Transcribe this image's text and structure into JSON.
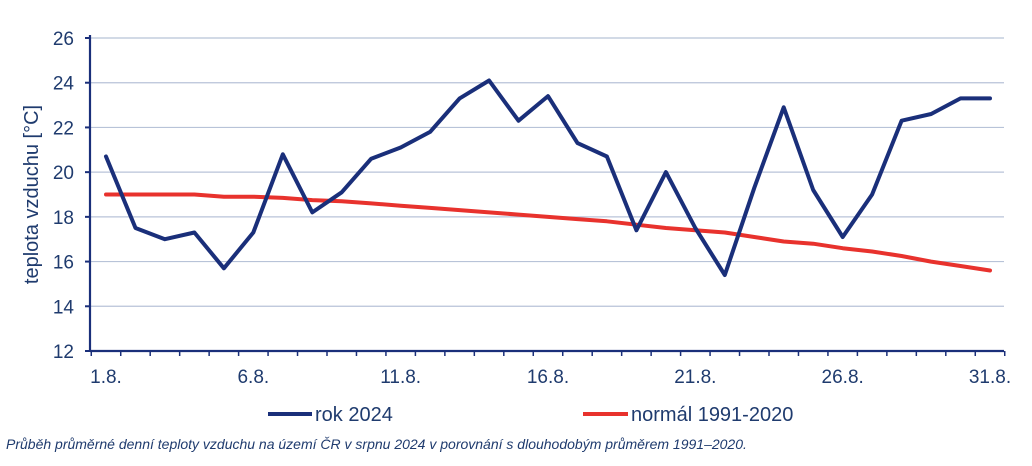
{
  "chart_data": {
    "type": "line",
    "ylabel": "teplota vzduchu [°C]",
    "xlabel": "",
    "ylim": [
      12,
      26
    ],
    "yticks": [
      12,
      14,
      16,
      18,
      20,
      22,
      24,
      26
    ],
    "x": [
      1,
      2,
      3,
      4,
      5,
      6,
      7,
      8,
      9,
      10,
      11,
      12,
      13,
      14,
      15,
      16,
      17,
      18,
      19,
      20,
      21,
      22,
      23,
      24,
      25,
      26,
      27,
      28,
      29,
      30,
      31
    ],
    "xtick_values": [
      1,
      6,
      11,
      16,
      21,
      26,
      31
    ],
    "xtick_labels": [
      "1.8.",
      "6.8.",
      "11.8.",
      "16.8.",
      "21.8.",
      "26.8.",
      "31.8."
    ],
    "grid": "horizontal",
    "legend_position": "bottom",
    "series": [
      {
        "name": "rok 2024",
        "color": "#1a2f7a",
        "values": [
          20.7,
          17.5,
          17.0,
          17.3,
          15.7,
          17.3,
          20.8,
          18.2,
          19.1,
          20.6,
          21.1,
          21.8,
          23.3,
          24.1,
          22.3,
          23.4,
          21.3,
          20.7,
          17.4,
          20.0,
          17.5,
          15.4,
          19.3,
          22.9,
          19.2,
          17.1,
          19.0,
          22.3,
          22.6,
          23.3,
          23.3
        ]
      },
      {
        "name": "normál 1991-2020",
        "color": "#e8322d",
        "values": [
          19.0,
          19.0,
          19.0,
          19.0,
          18.9,
          18.9,
          18.85,
          18.75,
          18.7,
          18.6,
          18.5,
          18.4,
          18.3,
          18.2,
          18.1,
          18.0,
          17.9,
          17.8,
          17.65,
          17.5,
          17.4,
          17.3,
          17.1,
          16.9,
          16.8,
          16.6,
          16.45,
          16.25,
          16.0,
          15.8,
          15.6
        ]
      }
    ]
  },
  "caption": "Průběh průměrné denní teploty vzduchu na území ČR v srpnu 2024 v porovnání s dlouhodobým průměrem 1991–2020.",
  "colors": {
    "axis_text": "#1f3b6e",
    "grid": "#b8c3d8",
    "axis_line": "#1a2f7a"
  }
}
